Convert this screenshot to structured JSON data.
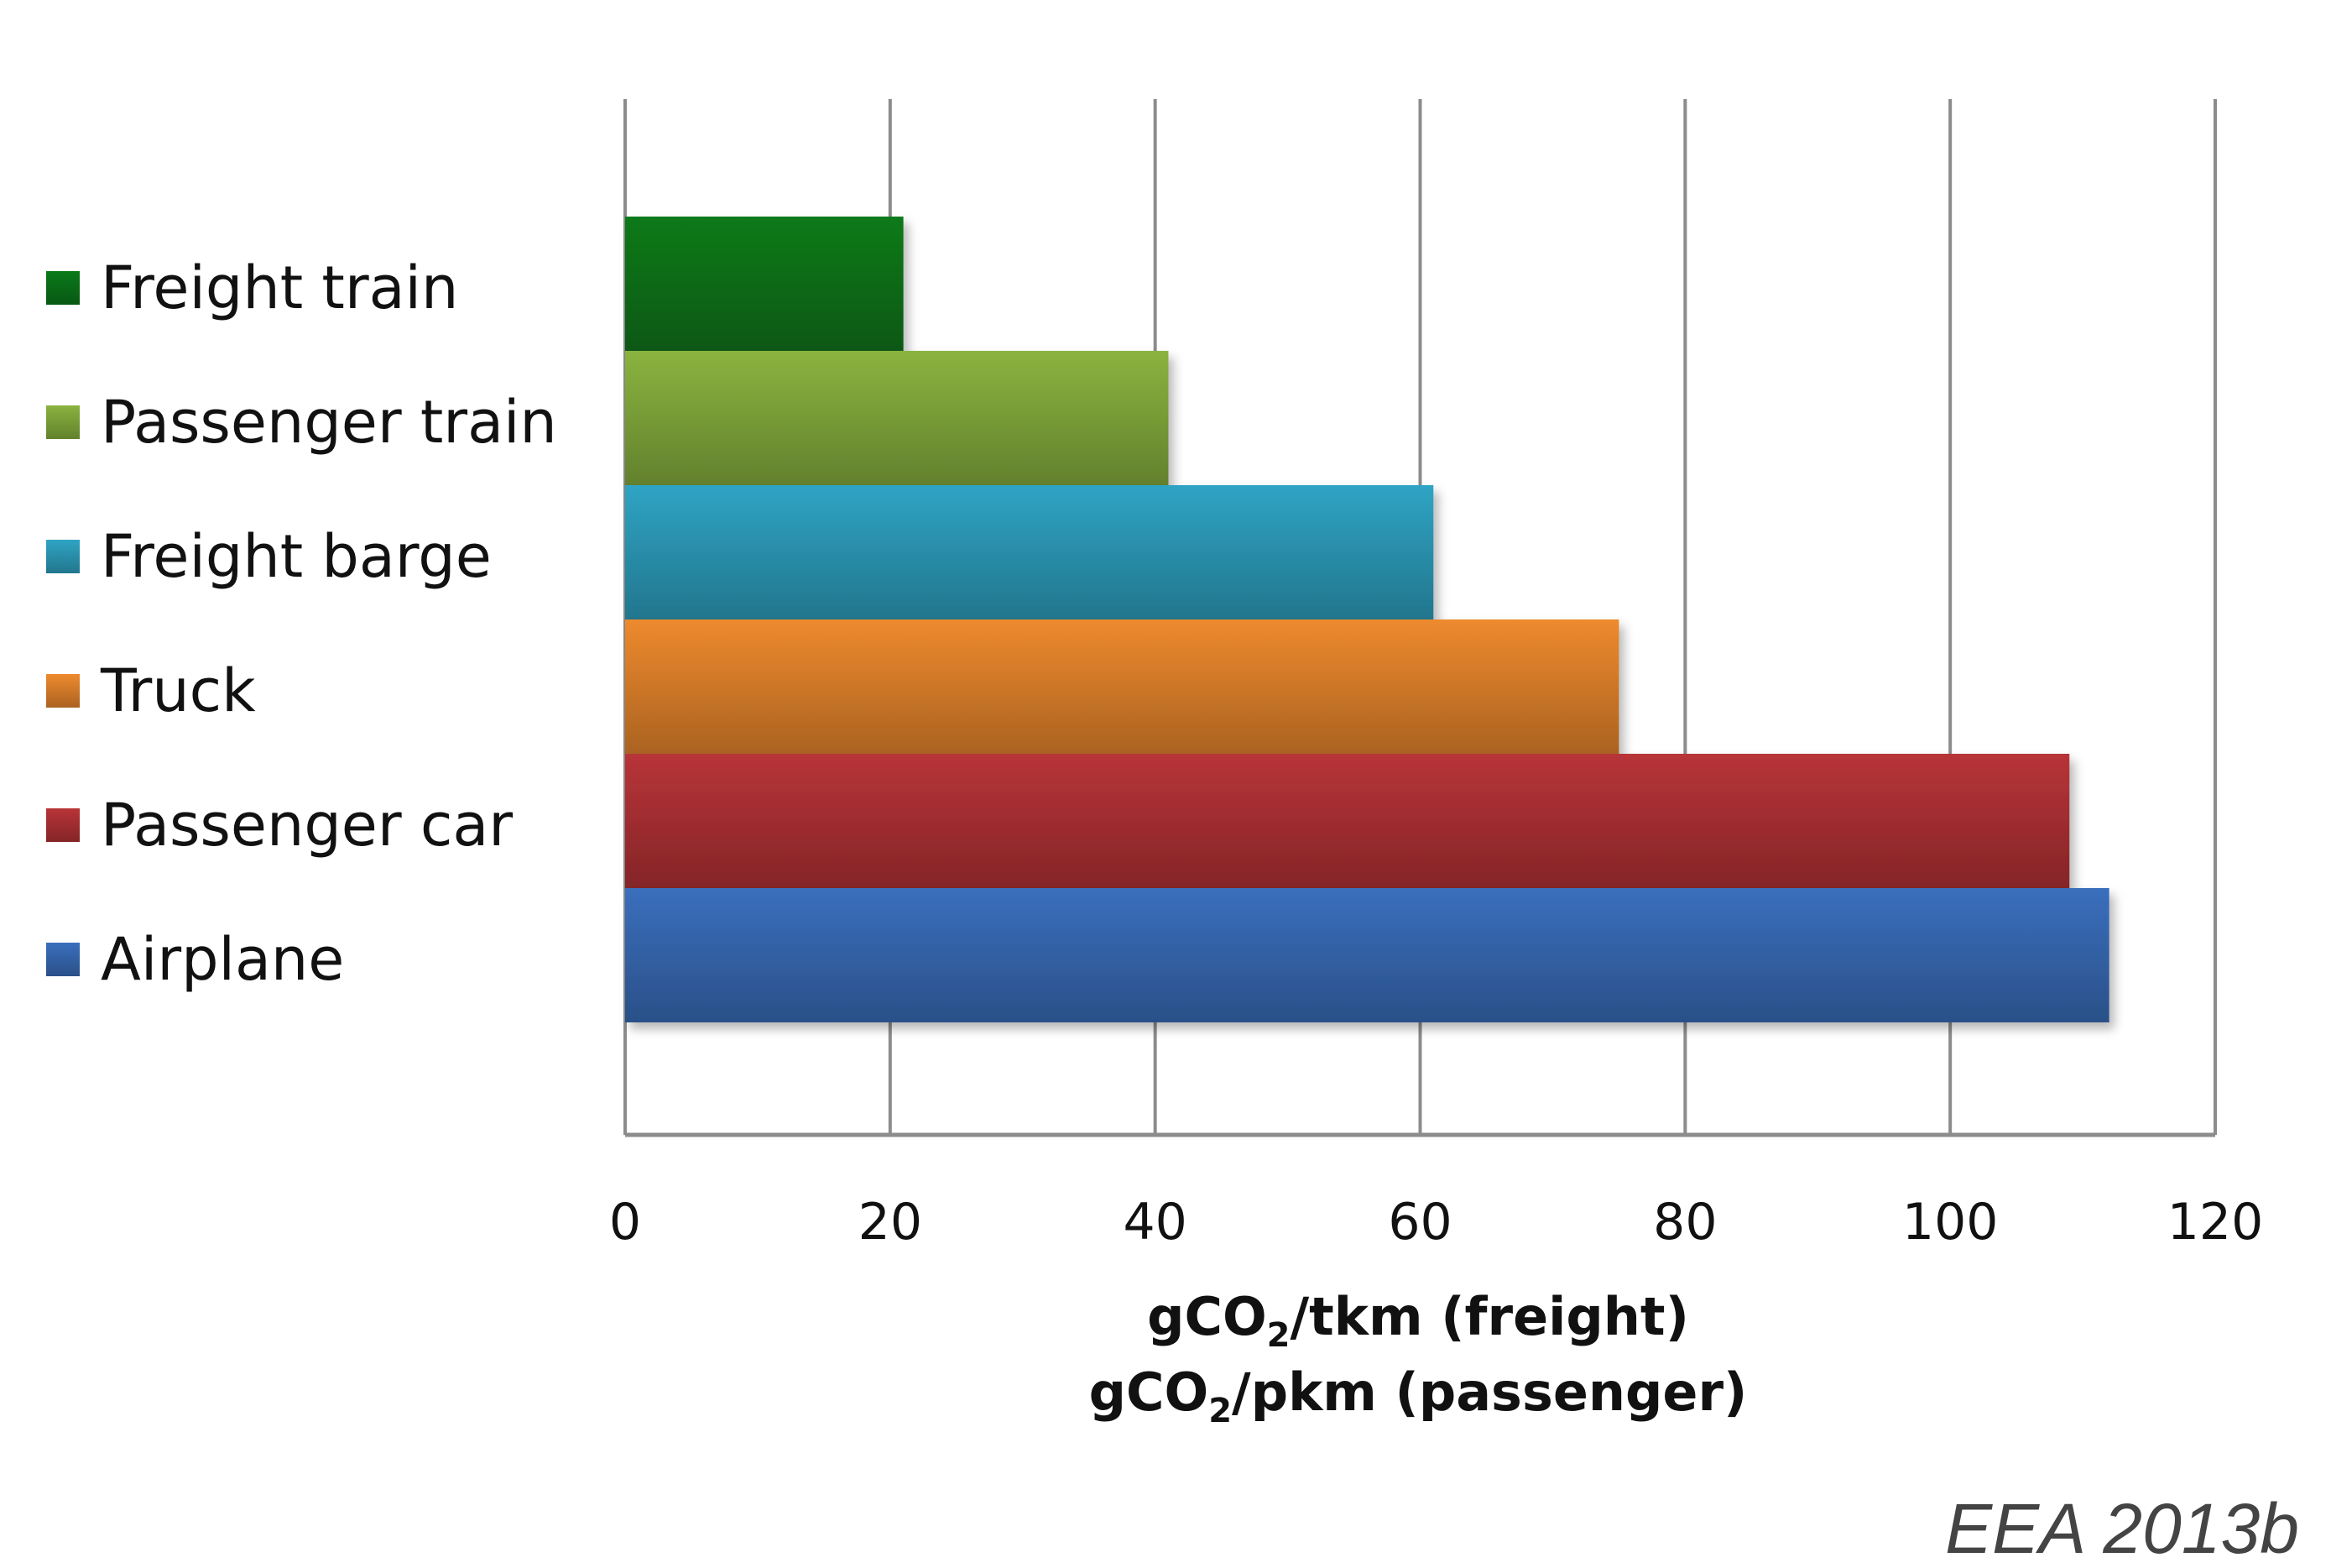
{
  "chart_data": {
    "type": "bar",
    "orientation": "horizontal",
    "categories": [
      "Freight train",
      "Passenger train",
      "Freight barge",
      "Truck",
      "Passenger car",
      "Airplane"
    ],
    "values": [
      21,
      41,
      61,
      75,
      109,
      112
    ],
    "colors": [
      "#0b7a1a",
      "#8ab33f",
      "#2fa4c4",
      "#ee8a2e",
      "#b83438",
      "#3a6fbd"
    ],
    "xlim": [
      0,
      120
    ],
    "xticks": [
      0,
      20,
      40,
      60,
      80,
      100,
      120
    ],
    "xlabel_line1": {
      "pre": "gCO",
      "sub": "2",
      "post": "/tkm (freight)"
    },
    "xlabel_line2": {
      "pre": "gCO",
      "sub": "2",
      "post": "/pkm (passenger)"
    },
    "grid": true,
    "legend_position": "left",
    "source": "EEA 2013b"
  }
}
